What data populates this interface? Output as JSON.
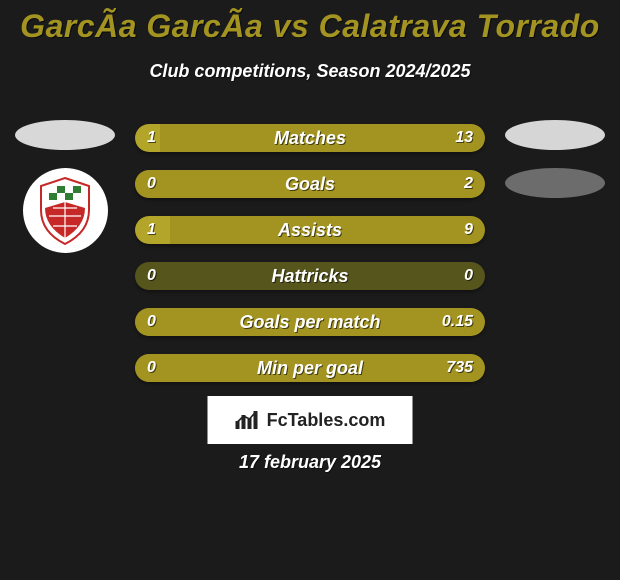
{
  "colors": {
    "background": "#1b1b1b",
    "title": "#a39421",
    "subtitle": "#ffffff",
    "bar_track": "#55551c",
    "bar_left": "#b3a42a",
    "bar_right": "#a39421",
    "bar_text": "#ffffff",
    "avatar_left": "#d8d8d8",
    "avatar_right_top": "#d6d6d6",
    "avatar_right_bottom": "#6c6c6c",
    "brand_bg": "#ffffff",
    "brand_text": "#222222",
    "date_text": "#ffffff"
  },
  "title": "GarcÃa GarcÃa vs Calatrava Torrado",
  "subtitle": "Club competitions, Season 2024/2025",
  "brand": "FcTables.com",
  "date": "17 february 2025",
  "club_logo_left": true,
  "stats": [
    {
      "label": "Matches",
      "left_val": "1",
      "right_val": "13",
      "left_pct": 7,
      "right_pct": 93
    },
    {
      "label": "Goals",
      "left_val": "0",
      "right_val": "2",
      "left_pct": 0,
      "right_pct": 100
    },
    {
      "label": "Assists",
      "left_val": "1",
      "right_val": "9",
      "left_pct": 10,
      "right_pct": 90
    },
    {
      "label": "Hattricks",
      "left_val": "0",
      "right_val": "0",
      "left_pct": 0,
      "right_pct": 0
    },
    {
      "label": "Goals per match",
      "left_val": "0",
      "right_val": "0.15",
      "left_pct": 0,
      "right_pct": 100
    },
    {
      "label": "Min per goal",
      "left_val": "0",
      "right_val": "735",
      "left_pct": 0,
      "right_pct": 100
    }
  ]
}
